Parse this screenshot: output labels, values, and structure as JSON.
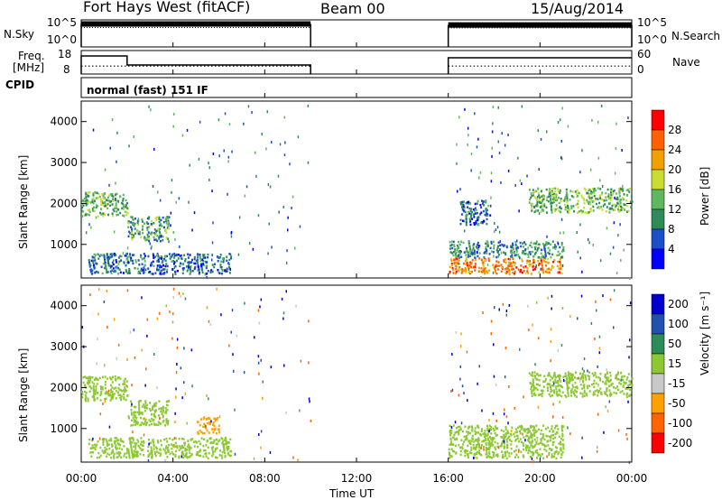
{
  "header": {
    "station": "Fort Hays West (fitACF)",
    "beam": "Beam 00",
    "date": "15/Aug/2014"
  },
  "strip_labels": {
    "nsky": "N.Sky",
    "nsearch": "N.Search",
    "freq_line1": "Freq.",
    "freq_line2": "[MHz]",
    "nave": "Nave",
    "cpid": "CPID",
    "cpid_value": "normal (fast) 151 IF"
  },
  "strip_ticks": {
    "noise_left": [
      "10^5",
      "10^0"
    ],
    "noise_right": [
      "10^5",
      "10^0"
    ],
    "freq_left": [
      "18",
      "8"
    ],
    "nave_right": [
      "60",
      "0"
    ]
  },
  "colors": {
    "power": [
      "#0000ff",
      "#1a4fc8",
      "#2e8b57",
      "#5fb85f",
      "#c8dc32",
      "#f0a000",
      "#ff6000",
      "#ff0000"
    ],
    "velocity": [
      "#0000cc",
      "#2050b0",
      "#2e8b57",
      "#8cc832",
      "#c8c8c8",
      "#ffa000",
      "#ff6400",
      "#ff0000"
    ]
  },
  "chart_data": [
    {
      "type": "line",
      "panel": "noise",
      "xlabel": "",
      "ylabel": "",
      "x_ticks": [
        "00:00",
        "04:00",
        "08:00",
        "12:00",
        "16:00",
        "20:00",
        "00:00"
      ],
      "series": [
        {
          "name": "N.Sky",
          "segments": [
            {
              "x": [
                0,
                10
              ],
              "y_log10": 4.5
            },
            {
              "x": [
                16,
                24
              ],
              "y_log10": 4.3
            }
          ]
        },
        {
          "name": "N.Search",
          "segments": [
            {
              "x": [
                0,
                10
              ],
              "y_log10": 3.8
            },
            {
              "x": [
                16,
                24
              ],
              "y_log10": 3.7
            }
          ]
        }
      ]
    },
    {
      "type": "line",
      "panel": "freq_nave",
      "series": [
        {
          "name": "Freq.",
          "segments": [
            {
              "x": [
                0,
                2
              ],
              "y": 16
            },
            {
              "x": [
                2,
                10
              ],
              "y": 11
            },
            {
              "x": [
                16,
                24
              ],
              "y": 15
            }
          ]
        },
        {
          "name": "Nave",
          "segments": [
            {
              "x": [
                0,
                10
              ],
              "y": 22
            },
            {
              "x": [
                16,
                24
              ],
              "y": 22
            }
          ]
        }
      ]
    },
    {
      "type": "heatmap",
      "panel": "power",
      "ylabel": "Slant Range [km]",
      "xlim": [
        0,
        24
      ],
      "ylim": [
        180,
        4500
      ],
      "y_ticks": [
        1000,
        2000,
        3000,
        4000
      ],
      "colorbar": {
        "label": "Power [dB]",
        "ticks": [
          "4",
          "8",
          "12",
          "16",
          "20",
          "24",
          "28"
        ]
      },
      "regions": [
        {
          "x": [
            0,
            2
          ],
          "y": [
            1700,
            2300
          ],
          "value": 14
        },
        {
          "x": [
            2,
            3.8
          ],
          "y": [
            1100,
            1700
          ],
          "value": 12
        },
        {
          "x": [
            0.3,
            6.5
          ],
          "y": [
            300,
            800
          ],
          "value": 8
        },
        {
          "x": [
            16,
            21
          ],
          "y": [
            300,
            700
          ],
          "value": 24
        },
        {
          "x": [
            16,
            21
          ],
          "y": [
            700,
            1100
          ],
          "value": 10
        },
        {
          "x": [
            16.5,
            17.8
          ],
          "y": [
            1500,
            2100
          ],
          "value": 8
        },
        {
          "x": [
            19.5,
            24
          ],
          "y": [
            1800,
            2400
          ],
          "value": 14
        }
      ]
    },
    {
      "type": "heatmap",
      "panel": "velocity",
      "xlabel": "Time UT",
      "ylabel": "Slant Range [km]",
      "xlim": [
        0,
        24
      ],
      "ylim": [
        180,
        4500
      ],
      "y_ticks": [
        1000,
        2000,
        3000,
        4000
      ],
      "colorbar": {
        "label": "Velocity [m s⁻¹]",
        "ticks": [
          "200",
          "100",
          "50",
          "15",
          "-15",
          "-50",
          "-100",
          "-200"
        ]
      },
      "regions": [
        {
          "x": [
            0,
            2
          ],
          "y": [
            1700,
            2300
          ],
          "value": 0
        },
        {
          "x": [
            2,
            3.8
          ],
          "y": [
            1100,
            1700
          ],
          "value": 0
        },
        {
          "x": [
            0.3,
            6.5
          ],
          "y": [
            300,
            800
          ],
          "value": 0
        },
        {
          "x": [
            16,
            21
          ],
          "y": [
            300,
            1100
          ],
          "value": 0
        },
        {
          "x": [
            19.5,
            24
          ],
          "y": [
            1800,
            2400
          ],
          "value": 0
        },
        {
          "x": [
            5,
            6
          ],
          "y": [
            900,
            1300
          ],
          "value": -80
        }
      ]
    }
  ]
}
